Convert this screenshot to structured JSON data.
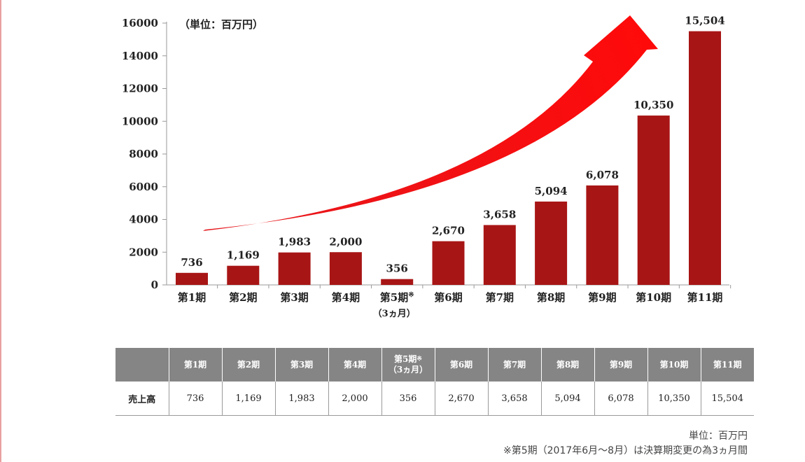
{
  "chart_data": {
    "type": "bar",
    "title": "",
    "unit_label": "（単位：百万円）",
    "categories": [
      "第1期",
      "第2期",
      "第3期",
      "第4期",
      "第5期",
      "第6期",
      "第7期",
      "第8期",
      "第9期",
      "第10期",
      "第11期"
    ],
    "category_notes": {
      "4": {
        "mark": "※",
        "sub": "（3ヵ月）"
      }
    },
    "values": [
      736,
      1169,
      1983,
      2000,
      356,
      2670,
      3658,
      5094,
      6078,
      10350,
      15504
    ],
    "value_labels": [
      "736",
      "1,169",
      "1,983",
      "2,000",
      "356",
      "2,670",
      "3,658",
      "5,094",
      "6,078",
      "10,350",
      "15,504"
    ],
    "ylim": [
      0,
      16000
    ],
    "yticks": [
      0,
      2000,
      4000,
      6000,
      8000,
      10000,
      12000,
      14000,
      16000
    ],
    "bar_color": "#a81515",
    "arrow_color": "#e5171c",
    "xlabel": "",
    "ylabel": ""
  },
  "table": {
    "header_cells": [
      "第1期",
      "第2期",
      "第3期",
      "第4期",
      "第5期",
      "第6期",
      "第7期",
      "第8期",
      "第9期",
      "第10期",
      "第11期"
    ],
    "header_note_mark": "※",
    "header_note_sub": "（3ヵ月）",
    "row_label": "売上高",
    "row_values": [
      "736",
      "1,169",
      "1,983",
      "2,000",
      "356",
      "2,670",
      "3,658",
      "5,094",
      "6,078",
      "10,350",
      "15,504"
    ]
  },
  "notes": {
    "unit": "単位：百万円",
    "footnote": "※第5期（2017年6月〜8月）は決算期変更の為3ヵ月間"
  }
}
